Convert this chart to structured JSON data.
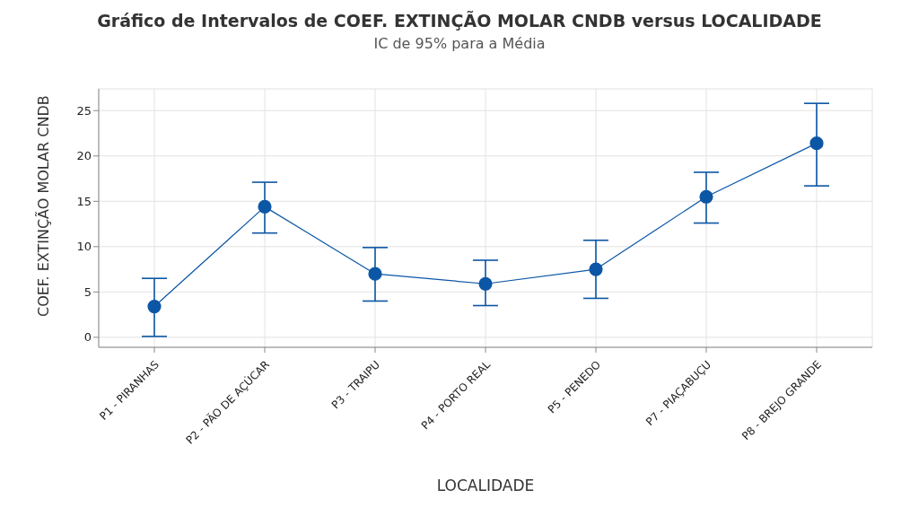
{
  "chart_data": {
    "type": "line",
    "title": "Gráfico de Intervalos de COEF. EXTINÇÃO MOLAR CNDB versus LOCALIDADE",
    "subtitle": "IC de 95% para a Média",
    "xlabel": "LOCALIDADE",
    "ylabel": "COEF. EXTINÇÃO MOLAR CNDB",
    "categories": [
      "P1 - PIRANHAS",
      "P2 - PÃO DE AÇÚCAR",
      "P3 - TRAIPU",
      "P4 - PORTO REAL",
      "P5 - PENEDO",
      "P7 - PIAÇABUÇU",
      "P8 - BREJO GRANDE"
    ],
    "series": [
      {
        "color": "#0b56a5",
        "values": [
          3.4,
          14.4,
          7.0,
          5.9,
          7.5,
          15.5,
          21.4
        ],
        "errors": [
          [
            0.1,
            6.5
          ],
          [
            11.5,
            17.1
          ],
          [
            4.0,
            9.9
          ],
          [
            3.5,
            8.5
          ],
          [
            4.3,
            10.7
          ],
          [
            12.6,
            18.2
          ],
          [
            16.7,
            25.8
          ]
        ]
      }
    ],
    "ylim": [
      -1.1,
      27.4
    ],
    "yticks": [
      0,
      5,
      10,
      15,
      20,
      25
    ],
    "grid": true,
    "marker": "circle",
    "line_style": "solid"
  }
}
